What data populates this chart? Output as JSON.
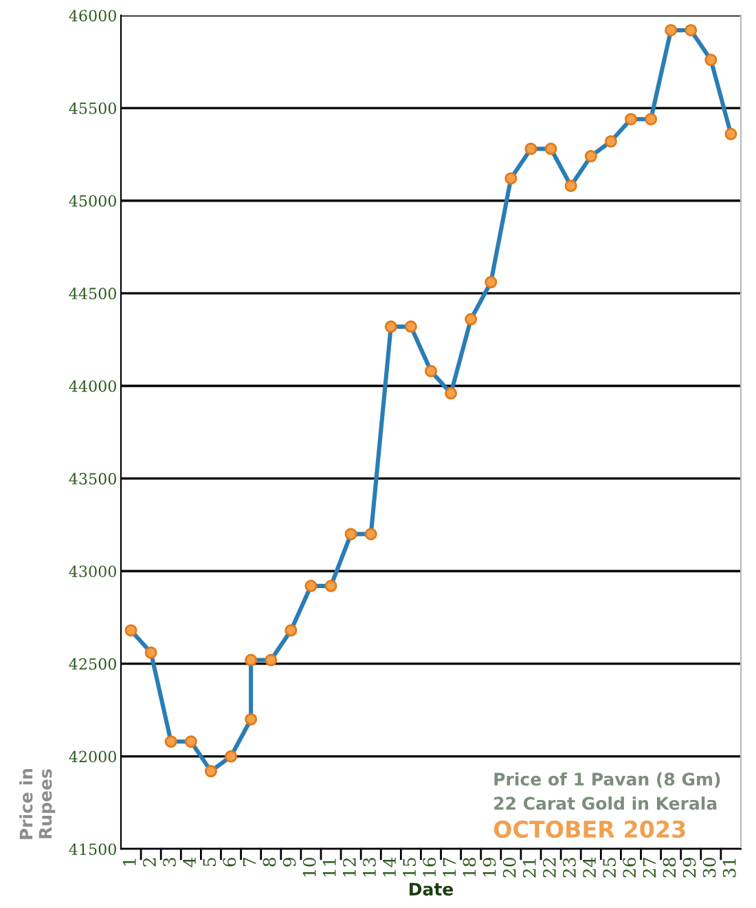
{
  "chart_data": {
    "type": "line",
    "xlabel": "Date",
    "ylabel": "Price in\nRupees",
    "annotations": [
      "Price of 1 Pavan (8 Gm)",
      "22 Carat Gold in Kerala",
      "OCTOBER 2023"
    ],
    "x": [
      1,
      2,
      3,
      4,
      5,
      6,
      7,
      7,
      8,
      9,
      10,
      11,
      12,
      13,
      14,
      15,
      16,
      17,
      18,
      19,
      20,
      21,
      22,
      23,
      24,
      25,
      26,
      27,
      28,
      29,
      30,
      31
    ],
    "series": [
      {
        "color": "#2a7db5",
        "values": [
          42680,
          42560,
          42080,
          42080,
          41920,
          42000,
          42200,
          42520,
          42520,
          42680,
          42920,
          42920,
          43200,
          43200,
          44320,
          44320,
          44080,
          43960,
          44360,
          44560,
          45120,
          45280,
          45280,
          45080,
          45240,
          45320,
          45440,
          45440,
          45920,
          45920,
          45760,
          45360
        ]
      }
    ],
    "xlim": [
      0.5,
      31.5
    ],
    "xticks": [
      1,
      2,
      3,
      4,
      5,
      6,
      7,
      8,
      9,
      10,
      11,
      12,
      13,
      14,
      15,
      16,
      17,
      18,
      19,
      20,
      21,
      22,
      23,
      24,
      25,
      26,
      27,
      28,
      29,
      30,
      31
    ],
    "ylim": [
      41500,
      46000
    ],
    "yticks": [
      41500,
      42000,
      42500,
      43000,
      43500,
      44000,
      44500,
      45000,
      45500,
      46000
    ],
    "grid": "y",
    "marker": "circle",
    "line_style": "solid",
    "legend": false
  }
}
